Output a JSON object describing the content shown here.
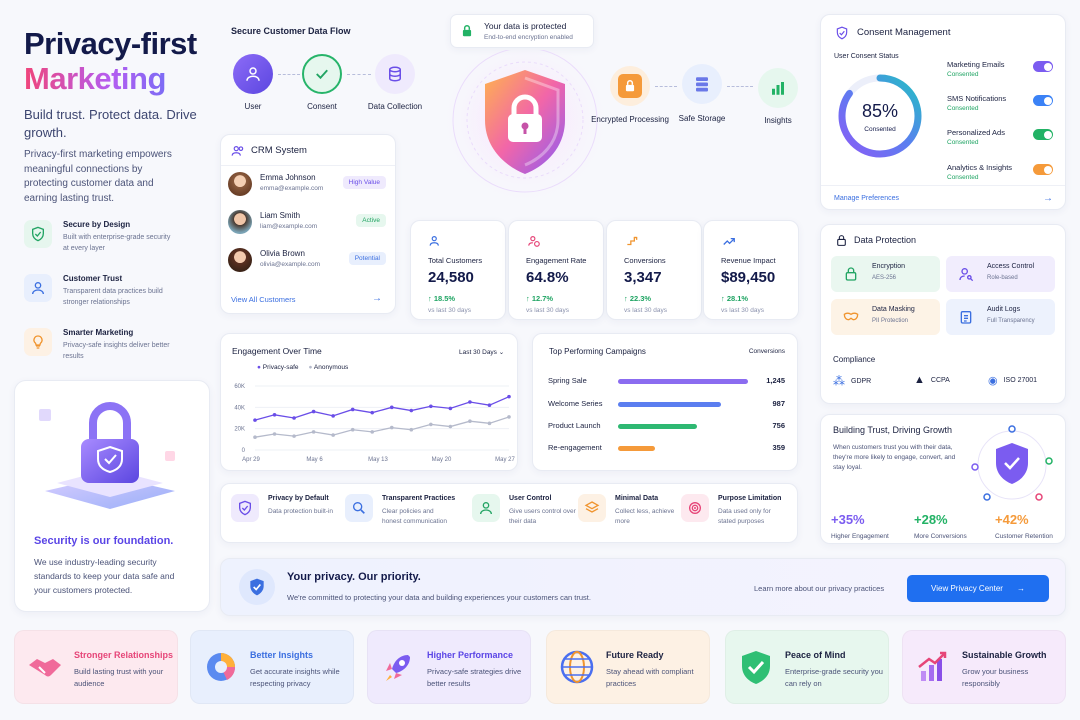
{
  "hero": {
    "title_line1": "Privacy-first",
    "title_line2": "Marketing",
    "tagline": "Build trust. Protect data. Drive growth.",
    "description": "Privacy-first marketing empowers meaningful connections by protecting customer data and earning lasting trust.",
    "features": [
      {
        "title": "Secure by Design",
        "desc": "Built with enterprise-grade security at every layer",
        "icon": "shield-check-icon"
      },
      {
        "title": "Customer Trust",
        "desc": "Transparent data practices build stronger relationships",
        "icon": "user-icon"
      },
      {
        "title": "Smarter Marketing",
        "desc": "Privacy-safe insights deliver better results",
        "icon": "lightbulb-icon"
      }
    ],
    "foundation_title": "Security is our foundation.",
    "foundation_desc": "We use industry-leading security standards to keep your data safe and your customers protected."
  },
  "flow": {
    "title": "Secure Customer Data Flow",
    "protected_title": "Your data is protected",
    "protected_sub": "End-to-end encryption enabled",
    "nodes": [
      {
        "label": "User",
        "icon": "user-icon"
      },
      {
        "label": "Consent",
        "icon": "check-icon"
      },
      {
        "label": "Data Collection",
        "icon": "database-icon"
      },
      {
        "label": "Encrypted Processing",
        "icon": "lock-icon"
      },
      {
        "label": "Safe Storage",
        "icon": "server-icon"
      },
      {
        "label": "Insights",
        "icon": "bar-chart-icon"
      }
    ]
  },
  "crm": {
    "title": "CRM System",
    "customers": [
      {
        "name": "Emma Johnson",
        "email": "emma@example.com",
        "badge": "High Value"
      },
      {
        "name": "Liam Smith",
        "email": "liam@example.com",
        "badge": "Active"
      },
      {
        "name": "Olivia Brown",
        "email": "olivia@example.com",
        "badge": "Potential"
      }
    ],
    "view_all": "View All Customers"
  },
  "stats": [
    {
      "label": "Total Customers",
      "value": "24,580",
      "change": "↑ 18.5%",
      "period": "vs last 30 days",
      "icon": "users-icon"
    },
    {
      "label": "Engagement Rate",
      "value": "64.8%",
      "change": "↑ 12.7%",
      "period": "vs last 30 days",
      "icon": "engagement-icon"
    },
    {
      "label": "Conversions",
      "value": "3,347",
      "change": "↑ 22.3%",
      "period": "vs last 30 days",
      "icon": "conversion-icon"
    },
    {
      "label": "Revenue Impact",
      "value": "$89,450",
      "change": "↑ 28.1%",
      "period": "vs last 30 days",
      "icon": "trend-icon"
    }
  ],
  "engagement": {
    "title": "Engagement Over Time",
    "range": "Last 30 Days",
    "legend_a": "Privacy-safe",
    "legend_b": "Anonymous",
    "y_ticks": [
      "60K",
      "40K",
      "20K",
      "0"
    ],
    "x_ticks": [
      "Apr 29",
      "May 6",
      "May 13",
      "May 20",
      "May 27"
    ]
  },
  "chart_data": {
    "type": "line",
    "xlabel": "",
    "ylabel": "",
    "ylim": [
      0,
      60000
    ],
    "x": [
      "Apr 29",
      "May 1",
      "May 3",
      "May 6",
      "May 8",
      "May 10",
      "May 13",
      "May 15",
      "May 17",
      "May 20",
      "May 22",
      "May 24",
      "May 26",
      "May 27"
    ],
    "series": [
      {
        "name": "Privacy-safe",
        "color": "#6a4ee8",
        "values": [
          28000,
          33000,
          30000,
          36000,
          32000,
          38000,
          35000,
          40000,
          37000,
          41000,
          39000,
          45000,
          42000,
          50000
        ]
      },
      {
        "name": "Anonymous",
        "color": "#b5bacb",
        "values": [
          12000,
          15000,
          13000,
          17000,
          14000,
          19000,
          17000,
          21000,
          19000,
          24000,
          22000,
          27000,
          25000,
          31000
        ]
      }
    ]
  },
  "campaigns": {
    "title": "Top Performing Campaigns",
    "metric": "Conversions",
    "items": [
      {
        "name": "Spring Sale",
        "value": "1,245",
        "num": 1245,
        "color": "#8b6cf0"
      },
      {
        "name": "Welcome Series",
        "value": "987",
        "num": 987,
        "color": "#5b7ef0"
      },
      {
        "name": "Product Launch",
        "value": "756",
        "num": 756,
        "color": "#2eb872"
      },
      {
        "name": "Re-engagement",
        "value": "359",
        "num": 359,
        "color": "#f59a3a"
      }
    ]
  },
  "principles": [
    {
      "title": "Privacy by Default",
      "desc": "Data protection built-in",
      "icon": "shield-check-icon"
    },
    {
      "title": "Transparent Practices",
      "desc": "Clear policies and honest communication",
      "icon": "search-icon"
    },
    {
      "title": "User Control",
      "desc": "Give users control over their data",
      "icon": "user-icon"
    },
    {
      "title": "Minimal Data",
      "desc": "Collect less, achieve more",
      "icon": "layers-icon"
    },
    {
      "title": "Purpose Limitation",
      "desc": "Data used only for stated purposes",
      "icon": "target-icon"
    }
  ],
  "banner": {
    "title": "Your privacy. Our priority.",
    "desc": "We're committed to protecting your data and building experiences your customers can trust.",
    "learn_more": "Learn more about our privacy practices",
    "cta": "View Privacy Center"
  },
  "consent": {
    "title": "Consent Management",
    "status_label": "User Consent Status",
    "percent": "85%",
    "percent_value": 85,
    "percent_label": "Consented",
    "toggles": [
      {
        "title": "Marketing Emails",
        "status": "Consented",
        "color": "#7b5cf0"
      },
      {
        "title": "SMS Notifications",
        "status": "Consented",
        "color": "#3b82f6"
      },
      {
        "title": "Personalized Ads",
        "status": "Consented",
        "color": "#22b265"
      },
      {
        "title": "Analytics & Insights",
        "status": "Consented",
        "color": "#f59a3a"
      }
    ],
    "manage": "Manage Preferences"
  },
  "data_protection": {
    "title": "Data Protection",
    "items": [
      {
        "title": "Encryption",
        "desc": "AES-256",
        "icon": "lock-icon"
      },
      {
        "title": "Access Control",
        "desc": "Role-based",
        "icon": "user-key-icon"
      },
      {
        "title": "Data Masking",
        "desc": "PII Protection",
        "icon": "mask-icon"
      },
      {
        "title": "Audit Logs",
        "desc": "Full Transparency",
        "icon": "clipboard-icon"
      }
    ],
    "compliance_title": "Compliance",
    "compliance": [
      "GDPR",
      "CCPA",
      "ISO 27001"
    ]
  },
  "growth": {
    "title": "Building Trust, Driving Growth",
    "desc": "When customers trust you with their data, they're more likely to engage, convert, and stay loyal.",
    "stats": [
      {
        "value": "+35%",
        "label": "Higher Engagement",
        "color": "#7b5cf0"
      },
      {
        "value": "+28%",
        "label": "More Conversions",
        "color": "#22b265"
      },
      {
        "value": "+42%",
        "label": "Customer Retention",
        "color": "#f59a3a"
      }
    ]
  },
  "benefits": [
    {
      "title": "Stronger Relationships",
      "desc": "Build lasting trust with your audience",
      "color": "#e64578",
      "bg": "#fde9ef",
      "icon": "handshake-icon"
    },
    {
      "title": "Better Insights",
      "desc": "Get accurate insights while respecting privacy",
      "color": "#3b6fe0",
      "bg": "#e8effd",
      "icon": "pie-chart-icon"
    },
    {
      "title": "Higher Performance",
      "desc": "Privacy-safe strategies drive better results",
      "color": "#5a45e6",
      "bg": "#efeafd",
      "icon": "rocket-icon"
    },
    {
      "title": "Future Ready",
      "desc": "Stay ahead with compliant practices",
      "color": "#1b2140",
      "bg": "#fdf1e4",
      "icon": "globe-icon"
    },
    {
      "title": "Peace of Mind",
      "desc": "Enterprise-grade security you can rely on",
      "color": "#1b2140",
      "bg": "#e7f7ee",
      "icon": "shield-check-icon"
    },
    {
      "title": "Sustainable Growth",
      "desc": "Grow your business responsibly",
      "color": "#1b2140",
      "bg": "#f6eafb",
      "icon": "growth-chart-icon"
    }
  ]
}
